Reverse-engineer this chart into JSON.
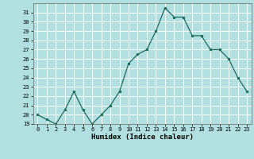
{
  "x": [
    0,
    1,
    2,
    3,
    4,
    5,
    6,
    7,
    8,
    9,
    10,
    11,
    12,
    13,
    14,
    15,
    16,
    17,
    18,
    19,
    20,
    21,
    22,
    23
  ],
  "y": [
    20.0,
    19.5,
    19.0,
    20.5,
    22.5,
    20.5,
    19.0,
    20.0,
    21.0,
    22.5,
    25.5,
    26.5,
    27.0,
    29.0,
    31.5,
    30.5,
    30.5,
    28.5,
    28.5,
    27.0,
    27.0,
    26.0,
    24.0,
    22.5
  ],
  "ylim": [
    19,
    32
  ],
  "yticks": [
    19,
    20,
    21,
    22,
    23,
    24,
    25,
    26,
    27,
    28,
    29,
    30,
    31
  ],
  "xticks": [
    0,
    1,
    2,
    3,
    4,
    5,
    6,
    7,
    8,
    9,
    10,
    11,
    12,
    13,
    14,
    15,
    16,
    17,
    18,
    19,
    20,
    21,
    22,
    23
  ],
  "xlabel": "Humidex (Indice chaleur)",
  "line_color": "#1a6b5a",
  "marker_color": "#1a6b5a",
  "bg_color": "#b2e0e0",
  "grid_color": "#ffffff"
}
